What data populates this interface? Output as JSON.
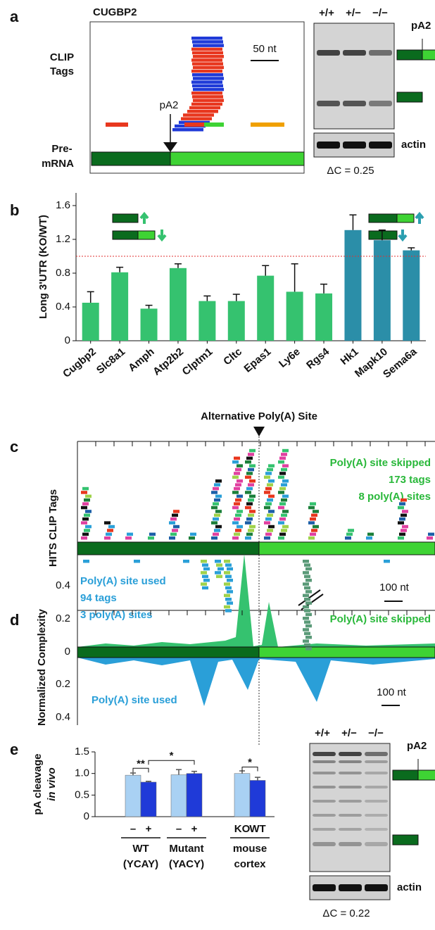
{
  "panels": {
    "a": {
      "letter": "a",
      "title": "CUGBP2",
      "clip_label": [
        "CLIP",
        "Tags"
      ],
      "scale_label": "50 nt",
      "site_label": "pA2",
      "premrna_label": [
        "Pre-",
        "mRNA"
      ],
      "gel_lanes": [
        "+/+",
        "+/−",
        "−/−"
      ],
      "gel_site": "pA2",
      "actin": "actin",
      "delta_c": "ΔC = 0.25"
    },
    "c": {
      "letter": "c",
      "title": "Alternative Poly(A) Site",
      "y_label": "HITS CLIP Tags",
      "skipped": [
        "Poly(A) site skipped",
        "173 tags",
        "8 poly(A) sites"
      ],
      "used": [
        "Poly(A) site used",
        "94 tags",
        "3 poly(A) sites"
      ],
      "scale_label": "100 nt"
    },
    "d": {
      "letter": "d",
      "y_label": "Normalized Complexity",
      "tick_labels": [
        "0.4",
        "0.2",
        "0",
        "0.2",
        "0.4"
      ],
      "skipped": "Poly(A) site skipped",
      "used": "Poly(A) site used",
      "scale_label": "100 nt"
    },
    "e_gel": {
      "gel_lanes": [
        "+/+",
        "+/−",
        "−/−"
      ],
      "gel_site": "pA2",
      "actin": "actin",
      "delta_c": "ΔC = 0.22"
    }
  },
  "chart_data": [
    {
      "type": "bar",
      "letter": "b",
      "y_label": "Long 3'UTR (KO/WT)",
      "categories": [
        "Cugbp2",
        "Slc8a1",
        "Amph",
        "Atp2b2",
        "Clptm1",
        "Cltc",
        "Epas1",
        "Ly6e",
        "Rgs4",
        "Hk1",
        "Mapk10",
        "Sema6a"
      ],
      "values": [
        0.45,
        0.81,
        0.38,
        0.86,
        0.47,
        0.47,
        0.77,
        0.58,
        0.56,
        1.31,
        1.19,
        1.07
      ],
      "errors": [
        0.13,
        0.06,
        0.04,
        0.05,
        0.06,
        0.08,
        0.12,
        0.33,
        0.11,
        0.18,
        0.12,
        0.03
      ],
      "colors": [
        "#35c26f",
        "#35c26f",
        "#35c26f",
        "#35c26f",
        "#35c26f",
        "#35c26f",
        "#35c26f",
        "#35c26f",
        "#35c26f",
        "#2b8ea8",
        "#2b8ea8",
        "#2b8ea8"
      ],
      "ylim": [
        0,
        1.75
      ],
      "yticks": [
        0,
        0.4,
        0.8,
        1.2,
        1.6
      ],
      "reference_line": 1,
      "reference_color": "#e03030"
    },
    {
      "type": "grouped_bar",
      "letter": "e",
      "y_label": [
        "pA cleavage",
        "in vivo"
      ],
      "bar_labels": [
        [
          "–",
          "+"
        ],
        [
          "–",
          "+"
        ],
        [
          "KO",
          "WT"
        ]
      ],
      "groups": [
        [
          "WT",
          "(YCAY)"
        ],
        [
          "Mutant",
          "(YACY)"
        ],
        [
          "mouse",
          "cortex"
        ]
      ],
      "series": [
        {
          "color": "#a9d1f3",
          "values": [
            0.96,
            0.97,
            1.0
          ],
          "errors": [
            0.05,
            0.12,
            0.06
          ]
        },
        {
          "color": "#1f3ad8",
          "values": [
            0.8,
            1.0,
            0.84
          ],
          "errors": [
            0.02,
            0.05,
            0.07
          ]
        }
      ],
      "significance": [
        "**",
        "*",
        "*"
      ],
      "ylim": [
        0,
        1.5
      ],
      "yticks": [
        0,
        {
          "value": 0.5,
          "label": "0.5"
        },
        {
          "value": 1,
          "label": "1.0"
        },
        1.5
      ]
    }
  ]
}
